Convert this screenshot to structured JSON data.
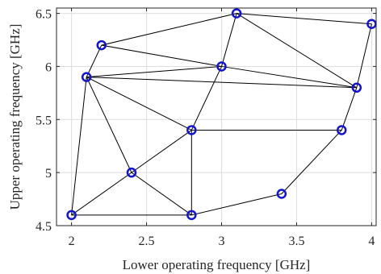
{
  "chart_data": {
    "type": "scatter",
    "title": "",
    "xlabel": "Lower operating frequency [GHz]",
    "ylabel": "Upper operating frequency [GHz]",
    "xlim": [
      1.9,
      4.03
    ],
    "ylim": [
      4.5,
      6.55
    ],
    "x_ticks": [
      2,
      2.5,
      3,
      3.5,
      4
    ],
    "x_tick_labels": [
      "2",
      "2.5",
      "3",
      "3.5",
      "4"
    ],
    "y_ticks": [
      4.5,
      5,
      5.5,
      6,
      6.5
    ],
    "y_tick_labels": [
      "4.5",
      "5",
      "5.5",
      "6",
      "6.5"
    ],
    "grid": true,
    "marker": "circle",
    "colors": {
      "marker": "#1515c8",
      "edge": "#000000",
      "grid": "#dedede",
      "axis": "#262626"
    },
    "points": [
      {
        "x": 2.0,
        "y": 4.6
      },
      {
        "x": 2.1,
        "y": 5.9
      },
      {
        "x": 2.2,
        "y": 6.2
      },
      {
        "x": 2.4,
        "y": 5.0
      },
      {
        "x": 2.8,
        "y": 4.6
      },
      {
        "x": 2.8,
        "y": 5.4
      },
      {
        "x": 3.0,
        "y": 6.0
      },
      {
        "x": 3.1,
        "y": 6.5
      },
      {
        "x": 3.4,
        "y": 4.8
      },
      {
        "x": 3.8,
        "y": 5.4
      },
      {
        "x": 3.9,
        "y": 5.8
      },
      {
        "x": 4.0,
        "y": 6.4
      }
    ],
    "edges": [
      [
        0,
        1
      ],
      [
        0,
        3
      ],
      [
        0,
        4
      ],
      [
        1,
        2
      ],
      [
        1,
        3
      ],
      [
        1,
        5
      ],
      [
        1,
        6
      ],
      [
        1,
        10
      ],
      [
        2,
        6
      ],
      [
        2,
        7
      ],
      [
        3,
        4
      ],
      [
        3,
        5
      ],
      [
        4,
        5
      ],
      [
        4,
        8
      ],
      [
        5,
        6
      ],
      [
        5,
        9
      ],
      [
        6,
        7
      ],
      [
        6,
        10
      ],
      [
        7,
        10
      ],
      [
        7,
        11
      ],
      [
        8,
        9
      ],
      [
        9,
        10
      ],
      [
        10,
        11
      ]
    ]
  }
}
